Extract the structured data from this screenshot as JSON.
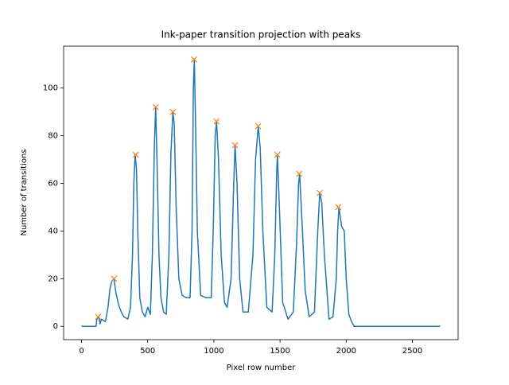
{
  "chart_data": {
    "type": "line",
    "title": "Ink-paper transition projection with peaks",
    "xlabel": "Pixel row number",
    "ylabel": "Number of transitions",
    "xlim": [
      -135.5,
      2845.5
    ],
    "ylim": [
      -5.6,
      117.6
    ],
    "xticks": [
      0,
      500,
      1000,
      1500,
      2000,
      2500
    ],
    "yticks": [
      0,
      20,
      40,
      60,
      80,
      100
    ],
    "series": [
      {
        "color": "#1f77b4",
        "marker": "none",
        "x": [
          0,
          110,
          115,
          130,
          140,
          150,
          180,
          200,
          215,
          230,
          245,
          260,
          280,
          300,
          320,
          350,
          370,
          385,
          395,
          405,
          415,
          425,
          440,
          460,
          480,
          500,
          520,
          535,
          550,
          560,
          570,
          585,
          600,
          620,
          640,
          660,
          675,
          690,
          700,
          715,
          735,
          760,
          790,
          820,
          835,
          845,
          852,
          860,
          875,
          900,
          940,
          980,
          995,
          1010,
          1020,
          1035,
          1055,
          1080,
          1100,
          1130,
          1150,
          1160,
          1175,
          1195,
          1220,
          1260,
          1295,
          1315,
          1335,
          1350,
          1370,
          1400,
          1440,
          1460,
          1475,
          1480,
          1495,
          1520,
          1560,
          1600,
          1625,
          1640,
          1648,
          1665,
          1690,
          1720,
          1760,
          1785,
          1800,
          1815,
          1835,
          1870,
          1900,
          1925,
          1935,
          1945,
          1965,
          1985,
          2000,
          2020,
          2040,
          2060,
          2710
        ],
        "values": [
          0,
          0,
          3,
          4,
          1,
          3,
          2,
          8,
          16,
          19,
          20,
          14,
          9,
          6,
          4,
          3,
          8,
          30,
          60,
          72,
          66,
          40,
          12,
          6,
          4,
          8,
          5,
          30,
          75,
          92,
          70,
          30,
          12,
          6,
          5,
          30,
          72,
          90,
          85,
          50,
          20,
          13,
          12,
          12,
          40,
          100,
          112,
          90,
          40,
          13,
          12,
          12,
          40,
          80,
          86,
          70,
          30,
          10,
          8,
          20,
          60,
          76,
          60,
          20,
          6,
          6,
          30,
          70,
          84,
          75,
          40,
          8,
          6,
          30,
          65,
          72,
          50,
          10,
          3,
          6,
          35,
          60,
          64,
          45,
          15,
          4,
          6,
          40,
          56,
          52,
          30,
          3,
          4,
          20,
          40,
          50,
          42,
          40,
          20,
          5,
          2,
          0,
          0
        ]
      },
      {
        "color": "#ff7f0e",
        "marker": "x",
        "x": [
          125,
          245,
          410,
          560,
          690,
          850,
          1020,
          1160,
          1335,
          1480,
          1645,
          1800,
          1940
        ],
        "values": [
          4,
          20,
          72,
          92,
          90,
          112,
          86,
          76,
          84,
          72,
          64,
          56,
          50
        ]
      }
    ]
  }
}
